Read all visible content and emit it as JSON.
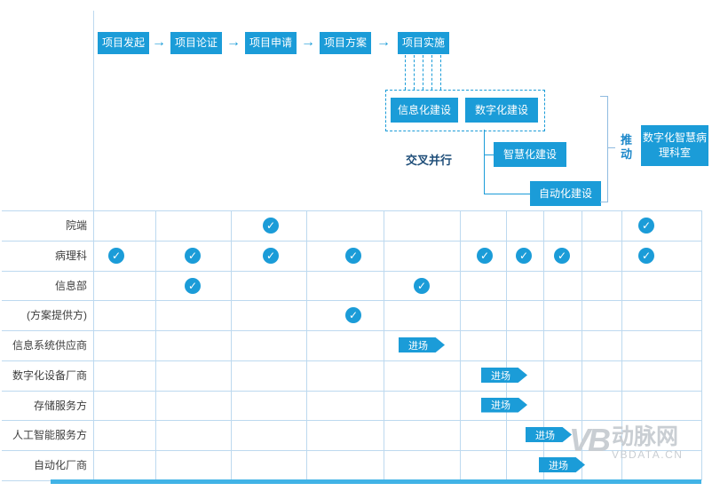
{
  "flow": {
    "stages": [
      "项目发起",
      "项目论证",
      "项目申请",
      "项目方案",
      "项目实施"
    ],
    "builds": [
      "信息化建设",
      "数字化建设",
      "智慧化建设",
      "自动化建设"
    ],
    "cross_label": "交叉并行",
    "push_label": "推动",
    "result": "数字化智慧病理科室"
  },
  "icons": {
    "arrow": "→",
    "check": "✓"
  },
  "table": {
    "badge_label": "进场",
    "rows": [
      {
        "label": "院端",
        "checks": [
          3,
          10
        ],
        "badges": []
      },
      {
        "label": "病理科",
        "checks": [
          1,
          2,
          3,
          4,
          6,
          7,
          8,
          10
        ],
        "badges": []
      },
      {
        "label": "信息部",
        "checks": [
          2,
          5
        ],
        "badges": []
      },
      {
        "label": "(方案提供方)",
        "checks": [
          4
        ],
        "badges": []
      },
      {
        "label": "信息系统供应商",
        "checks": [],
        "badges": [
          5
        ]
      },
      {
        "label": "数字化设备厂商",
        "checks": [],
        "badges": [
          6.5
        ]
      },
      {
        "label": "存储服务方",
        "checks": [],
        "badges": [
          6.5
        ]
      },
      {
        "label": "人工智能服务方",
        "checks": [],
        "badges": [
          7.5
        ]
      },
      {
        "label": "自动化厂商",
        "checks": [],
        "badges": [
          8
        ]
      }
    ]
  },
  "watermark": {
    "logo": "VB",
    "name": "动脉网",
    "domain": "VBDATA.CN"
  },
  "colors": {
    "primary": "#1B9CD8",
    "grid": "#BDD9EF",
    "dark": "#1F4E79",
    "watermark": "#C9CED3"
  }
}
